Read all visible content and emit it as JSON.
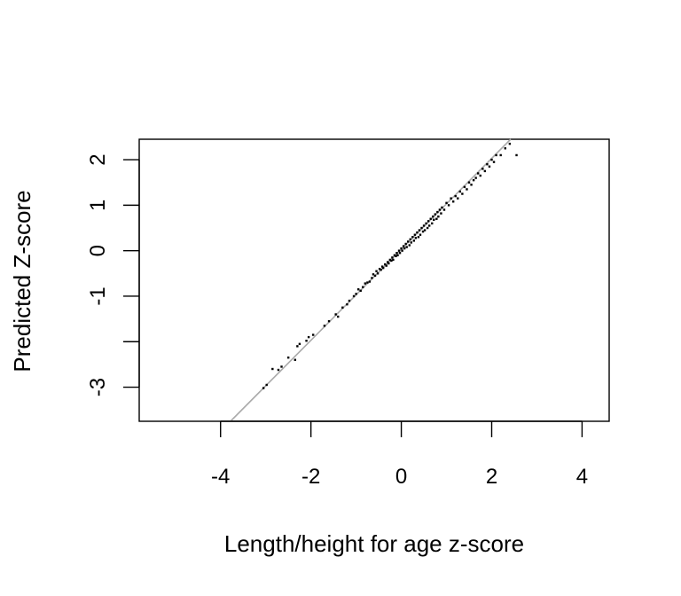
{
  "chart_data": {
    "type": "scatter",
    "title": "",
    "xlabel": "Length/height for age z-score",
    "ylabel": "Predicted Z-score",
    "xlim": [
      -5.8,
      4.6
    ],
    "ylim": [
      -3.75,
      2.45
    ],
    "x_ticks": [
      -4,
      -2,
      0,
      2,
      4
    ],
    "x_tick_labels": [
      "-4",
      "-2",
      "0",
      "2",
      "4"
    ],
    "y_ticks": [
      -3,
      -2,
      -1,
      0,
      1,
      2
    ],
    "y_tick_labels": [
      "-3",
      "",
      "-1",
      "0",
      "1",
      "2"
    ],
    "grid": false,
    "legend": "none",
    "point_color": "#000000",
    "line_color": "#aaaaaa",
    "reference_line": {
      "x1": -3.78,
      "y1": -3.75,
      "x2": 2.42,
      "y2": 2.45
    },
    "series": [
      {
        "values": [
          [
            -3.05,
            -3.02
          ],
          [
            -2.98,
            -2.95
          ],
          [
            -2.85,
            -2.6
          ],
          [
            -2.72,
            -2.62
          ],
          [
            -2.65,
            -2.55
          ],
          [
            -2.5,
            -2.35
          ],
          [
            -2.35,
            -2.4
          ],
          [
            -2.3,
            -2.1
          ],
          [
            -2.25,
            -2.05
          ],
          [
            -2.1,
            -1.98
          ],
          [
            -2.05,
            -1.9
          ],
          [
            -1.95,
            -1.85
          ],
          [
            -1.7,
            -1.65
          ],
          [
            -1.6,
            -1.55
          ],
          [
            -1.45,
            -1.4
          ],
          [
            -1.4,
            -1.45
          ],
          [
            -1.3,
            -1.25
          ],
          [
            -1.2,
            -1.18
          ],
          [
            -1.15,
            -1.1
          ],
          [
            -1.05,
            -1.0
          ],
          [
            -1.0,
            -0.95
          ],
          [
            -0.95,
            -0.85
          ],
          [
            -0.9,
            -0.88
          ],
          [
            -0.85,
            -0.8
          ],
          [
            -0.8,
            -0.72
          ],
          [
            -0.75,
            -0.7
          ],
          [
            -0.7,
            -0.68
          ],
          [
            -0.65,
            -0.6
          ],
          [
            -0.62,
            -0.52
          ],
          [
            -0.58,
            -0.55
          ],
          [
            -0.55,
            -0.45
          ],
          [
            -0.52,
            -0.5
          ],
          [
            -0.48,
            -0.4
          ],
          [
            -0.45,
            -0.42
          ],
          [
            -0.42,
            -0.35
          ],
          [
            -0.4,
            -0.38
          ],
          [
            -0.36,
            -0.3
          ],
          [
            -0.33,
            -0.33
          ],
          [
            -0.3,
            -0.25
          ],
          [
            -0.28,
            -0.28
          ],
          [
            -0.25,
            -0.2
          ],
          [
            -0.22,
            -0.22
          ],
          [
            -0.2,
            -0.15
          ],
          [
            -0.18,
            -0.2
          ],
          [
            -0.15,
            -0.1
          ],
          [
            -0.12,
            -0.12
          ],
          [
            -0.1,
            -0.05
          ],
          [
            -0.08,
            -0.1
          ],
          [
            -0.05,
            0.0
          ],
          [
            -0.03,
            -0.05
          ],
          [
            0.0,
            0.05
          ],
          [
            0.02,
            0.0
          ],
          [
            0.05,
            0.1
          ],
          [
            0.07,
            0.05
          ],
          [
            0.1,
            0.15
          ],
          [
            0.12,
            0.08
          ],
          [
            0.15,
            0.2
          ],
          [
            0.18,
            0.12
          ],
          [
            0.2,
            0.25
          ],
          [
            0.22,
            0.18
          ],
          [
            0.25,
            0.3
          ],
          [
            0.28,
            0.22
          ],
          [
            0.3,
            0.35
          ],
          [
            0.32,
            0.28
          ],
          [
            0.35,
            0.4
          ],
          [
            0.38,
            0.3
          ],
          [
            0.4,
            0.45
          ],
          [
            0.42,
            0.35
          ],
          [
            0.45,
            0.5
          ],
          [
            0.48,
            0.42
          ],
          [
            0.5,
            0.55
          ],
          [
            0.52,
            0.45
          ],
          [
            0.55,
            0.6
          ],
          [
            0.58,
            0.5
          ],
          [
            0.6,
            0.65
          ],
          [
            0.62,
            0.55
          ],
          [
            0.65,
            0.7
          ],
          [
            0.68,
            0.6
          ],
          [
            0.7,
            0.75
          ],
          [
            0.72,
            0.68
          ],
          [
            0.75,
            0.8
          ],
          [
            0.78,
            0.7
          ],
          [
            0.8,
            0.85
          ],
          [
            0.82,
            0.75
          ],
          [
            0.85,
            0.9
          ],
          [
            0.88,
            0.82
          ],
          [
            0.9,
            0.95
          ],
          [
            0.95,
            0.9
          ],
          [
            1.0,
            1.05
          ],
          [
            1.05,
            1.0
          ],
          [
            1.1,
            1.15
          ],
          [
            1.15,
            1.08
          ],
          [
            1.2,
            1.2
          ],
          [
            1.25,
            1.15
          ],
          [
            1.3,
            1.3
          ],
          [
            1.35,
            1.25
          ],
          [
            1.4,
            1.4
          ],
          [
            1.45,
            1.35
          ],
          [
            1.5,
            1.5
          ],
          [
            1.55,
            1.45
          ],
          [
            1.6,
            1.55
          ],
          [
            1.65,
            1.6
          ],
          [
            1.7,
            1.7
          ],
          [
            1.75,
            1.65
          ],
          [
            1.8,
            1.8
          ],
          [
            1.85,
            1.75
          ],
          [
            1.9,
            1.9
          ],
          [
            1.95,
            1.85
          ],
          [
            2.0,
            2.0
          ],
          [
            2.05,
            1.95
          ],
          [
            2.1,
            2.1
          ],
          [
            2.2,
            2.1
          ],
          [
            2.3,
            2.25
          ],
          [
            2.4,
            2.35
          ],
          [
            2.55,
            2.1
          ]
        ]
      }
    ]
  }
}
